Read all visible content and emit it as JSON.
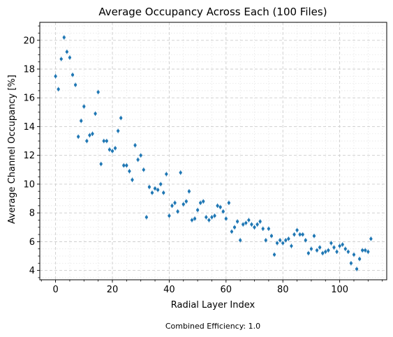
{
  "chart_data": {
    "type": "scatter",
    "title": "Average Occupancy Across Each  (100 Files)",
    "xlabel": "Radial Layer Index",
    "ylabel": "Average Channel Occupancy [%]",
    "xlim": [
      -5.55,
      116.55
    ],
    "ylim": [
      3.35,
      21.25
    ],
    "xticks": [
      0,
      20,
      40,
      60,
      80,
      100
    ],
    "yticks": [
      4,
      6,
      8,
      10,
      12,
      14,
      16,
      18,
      20
    ],
    "grid": true,
    "marker_color": "#1f77b4",
    "footnote": "Combined Efficiency: 1.0",
    "x": [
      0,
      1,
      2,
      3,
      4,
      5,
      6,
      7,
      8,
      9,
      10,
      11,
      12,
      13,
      14,
      15,
      16,
      17,
      18,
      19,
      20,
      21,
      22,
      23,
      24,
      25,
      26,
      27,
      28,
      29,
      30,
      31,
      32,
      33,
      34,
      35,
      36,
      37,
      38,
      39,
      40,
      41,
      42,
      43,
      44,
      45,
      46,
      47,
      48,
      49,
      50,
      51,
      52,
      53,
      54,
      55,
      56,
      57,
      58,
      59,
      60,
      61,
      62,
      63,
      64,
      65,
      66,
      67,
      68,
      69,
      70,
      71,
      72,
      73,
      74,
      75,
      76,
      77,
      78,
      79,
      80,
      81,
      82,
      83,
      84,
      85,
      86,
      87,
      88,
      89,
      90,
      91,
      92,
      93,
      94,
      95,
      96,
      97,
      98,
      99,
      100,
      101,
      102,
      103,
      104,
      105,
      106,
      107,
      108,
      109,
      110,
      111
    ],
    "y": [
      17.5,
      16.6,
      18.7,
      20.2,
      19.2,
      18.8,
      17.6,
      16.9,
      13.3,
      14.4,
      15.4,
      13.0,
      13.4,
      13.5,
      14.9,
      16.4,
      11.4,
      13.0,
      13.0,
      12.4,
      12.3,
      12.5,
      13.7,
      14.6,
      11.3,
      11.3,
      10.9,
      10.3,
      12.7,
      11.7,
      12.0,
      11.0,
      7.7,
      9.8,
      9.4,
      9.7,
      9.6,
      10.0,
      9.4,
      10.7,
      7.8,
      8.5,
      8.7,
      8.1,
      10.8,
      8.6,
      8.8,
      9.5,
      7.5,
      7.6,
      8.2,
      8.7,
      8.8,
      7.7,
      7.5,
      7.7,
      7.8,
      8.5,
      8.4,
      8.1,
      7.6,
      8.7,
      6.7,
      7.0,
      7.4,
      6.1,
      7.2,
      7.3,
      7.5,
      7.2,
      7.0,
      7.2,
      7.4,
      6.9,
      6.1,
      6.9,
      6.4,
      5.1,
      5.9,
      6.1,
      5.9,
      6.1,
      6.2,
      5.7,
      6.5,
      6.8,
      6.5,
      6.5,
      6.1,
      5.2,
      5.5,
      6.4,
      5.4,
      5.6,
      5.2,
      5.3,
      5.4,
      5.9,
      5.6,
      5.3,
      5.7,
      5.8,
      5.5,
      5.3,
      4.5,
      5.1,
      4.1,
      4.8,
      5.4,
      5.4,
      5.3,
      6.2
    ]
  }
}
